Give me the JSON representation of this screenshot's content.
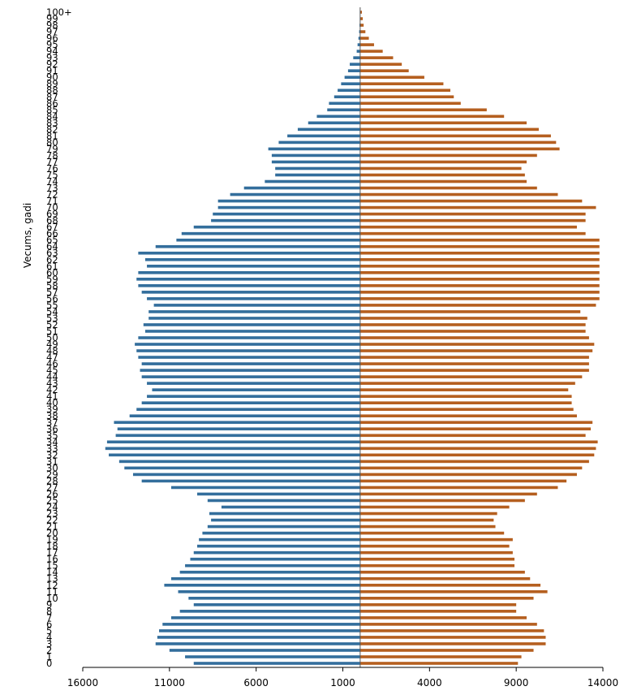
{
  "chart_data": {
    "type": "bar",
    "orientation": "horizontal",
    "layout": "population-pyramid",
    "ylabel": "Vecums, gadi",
    "xlabel": "",
    "categories": [
      "0",
      "1",
      "2",
      "3",
      "4",
      "5",
      "6",
      "7",
      "8",
      "9",
      "10",
      "11",
      "12",
      "13",
      "14",
      "15",
      "16",
      "17",
      "18",
      "19",
      "20",
      "21",
      "22",
      "23",
      "24",
      "25",
      "26",
      "27",
      "28",
      "29",
      "30",
      "31",
      "32",
      "33",
      "34",
      "35",
      "36",
      "37",
      "38",
      "39",
      "40",
      "41",
      "42",
      "43",
      "44",
      "45",
      "46",
      "47",
      "48",
      "49",
      "50",
      "51",
      "52",
      "53",
      "54",
      "55",
      "56",
      "57",
      "58",
      "59",
      "60",
      "61",
      "62",
      "63",
      "64",
      "65",
      "66",
      "67",
      "68",
      "69",
      "70",
      "71",
      "72",
      "73",
      "74",
      "75",
      "76",
      "77",
      "78",
      "79",
      "80",
      "81",
      "82",
      "83",
      "84",
      "85",
      "86",
      "87",
      "88",
      "89",
      "90",
      "91",
      "92",
      "93",
      "94",
      "95",
      "96",
      "97",
      "98",
      "99",
      "100+"
    ],
    "x_tick_labels": [
      "16000",
      "11000",
      "6000",
      "1000",
      "4000",
      "9000",
      "14000"
    ],
    "x_tick_values": [
      -16000,
      -11000,
      -6000,
      -1000,
      4000,
      9000,
      14000
    ],
    "xlim": [
      -16000,
      14000
    ],
    "grid": false,
    "legend": "none",
    "series": [
      {
        "side": "left",
        "color": "#336e9c",
        "values": [
          -9600,
          -10100,
          -11000,
          -11800,
          -11700,
          -11600,
          -11400,
          -10900,
          -10400,
          -9600,
          -9900,
          -10500,
          -11300,
          -10900,
          -10400,
          -10100,
          -9800,
          -9600,
          -9400,
          -9300,
          -9100,
          -8800,
          -8600,
          -8700,
          -8000,
          -8800,
          -9400,
          -10900,
          -12600,
          -13100,
          -13600,
          -13900,
          -14500,
          -14700,
          -14600,
          -14100,
          -14000,
          -14200,
          -13300,
          -12900,
          -12600,
          -12300,
          -12000,
          -12300,
          -12600,
          -12700,
          -12600,
          -12800,
          -12900,
          -13000,
          -12800,
          -12400,
          -12500,
          -12200,
          -12200,
          -11900,
          -12300,
          -12600,
          -12800,
          -12900,
          -12800,
          -12300,
          -12400,
          -12800,
          -11800,
          -10600,
          -10300,
          -9600,
          -8600,
          -8500,
          -8200,
          -8200,
          -7500,
          -6700,
          -5500,
          -4900,
          -4900,
          -5100,
          -5100,
          -5300,
          -4700,
          -4200,
          -3600,
          -3000,
          -2500,
          -1900,
          -1800,
          -1500,
          -1300,
          -1100,
          -900,
          -700,
          -600,
          -400,
          -200,
          -150,
          -100,
          -60,
          -40,
          -20,
          -20
        ]
      },
      {
        "side": "right",
        "color": "#b55f1f",
        "values": [
          9100,
          9300,
          10000,
          10700,
          10700,
          10600,
          10200,
          9600,
          9000,
          9000,
          10000,
          10800,
          10400,
          9800,
          9500,
          8900,
          8900,
          8800,
          8600,
          8800,
          8300,
          7800,
          7700,
          7900,
          8600,
          9500,
          10200,
          11400,
          11900,
          12500,
          12800,
          13200,
          13500,
          13600,
          13700,
          13000,
          13300,
          13400,
          12500,
          12300,
          12200,
          12200,
          12000,
          12400,
          12800,
          13200,
          13200,
          13200,
          13400,
          13500,
          13200,
          13000,
          13000,
          13100,
          12700,
          13600,
          13800,
          13800,
          13800,
          13800,
          13800,
          13800,
          13800,
          13800,
          13800,
          13800,
          13000,
          12500,
          13000,
          13000,
          13600,
          12800,
          11400,
          10200,
          9600,
          9500,
          9300,
          9600,
          10200,
          11500,
          11300,
          11000,
          10300,
          9600,
          8300,
          7300,
          5800,
          5400,
          5200,
          4800,
          3700,
          2800,
          2400,
          1900,
          1300,
          800,
          500,
          300,
          200,
          150,
          100
        ]
      }
    ]
  }
}
